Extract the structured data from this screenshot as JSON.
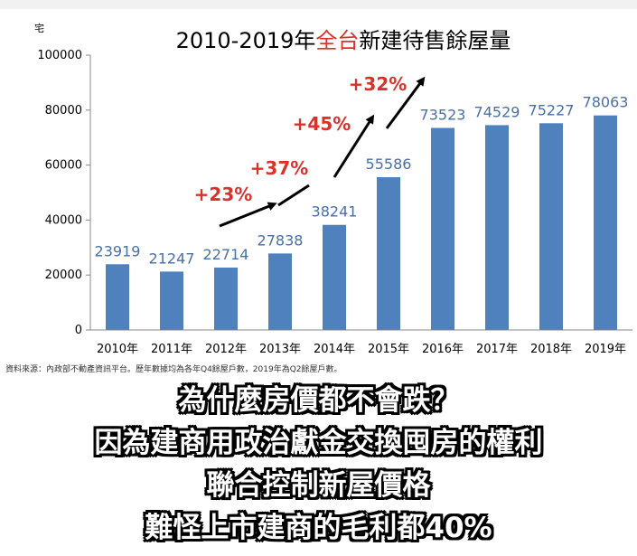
{
  "colors": {
    "bar": "#4f81bd",
    "value_label": "#4a6fa5",
    "growth_label": "#d9322b",
    "title_highlight": "#d9322b",
    "arrow": "#000000",
    "axis_text": "#000000"
  },
  "chart_data": {
    "type": "bar",
    "title_parts": {
      "prefix": "2010-2019年",
      "highlight": "全台",
      "suffix": "新建待售餘屋量"
    },
    "y_unit": "宅",
    "categories": [
      "2010年",
      "2011年",
      "2012年",
      "2013年",
      "2014年",
      "2015年",
      "2016年",
      "2017年",
      "2018年",
      "2019年"
    ],
    "series": [
      {
        "values": [
          23919,
          21247,
          22714,
          27838,
          38241,
          55586,
          73523,
          74529,
          75227,
          78063
        ]
      }
    ],
    "ylim": [
      0,
      100000
    ],
    "yticks": [
      0,
      20000,
      40000,
      60000,
      80000,
      100000
    ],
    "legend": "none",
    "grid": false,
    "annotations": [
      {
        "text": "+23%",
        "near_category": "2012年"
      },
      {
        "text": "+37%",
        "near_category": "2013年"
      },
      {
        "text": "+45%",
        "near_category": "2014年"
      },
      {
        "text": "+32%",
        "near_category": "2015年"
      }
    ]
  },
  "source_note": "資料來源：內政部不動產資訊平台。歷年數據均為各年Q4餘屋戶數，2019年為Q2餘屋戶數。",
  "overlay_lines": [
    "為什麼房價都不會跌？",
    "因為建商用政治獻金交換囤房的權利",
    "聯合控制新屋價格",
    "難怪上市建商的毛利都40%"
  ]
}
